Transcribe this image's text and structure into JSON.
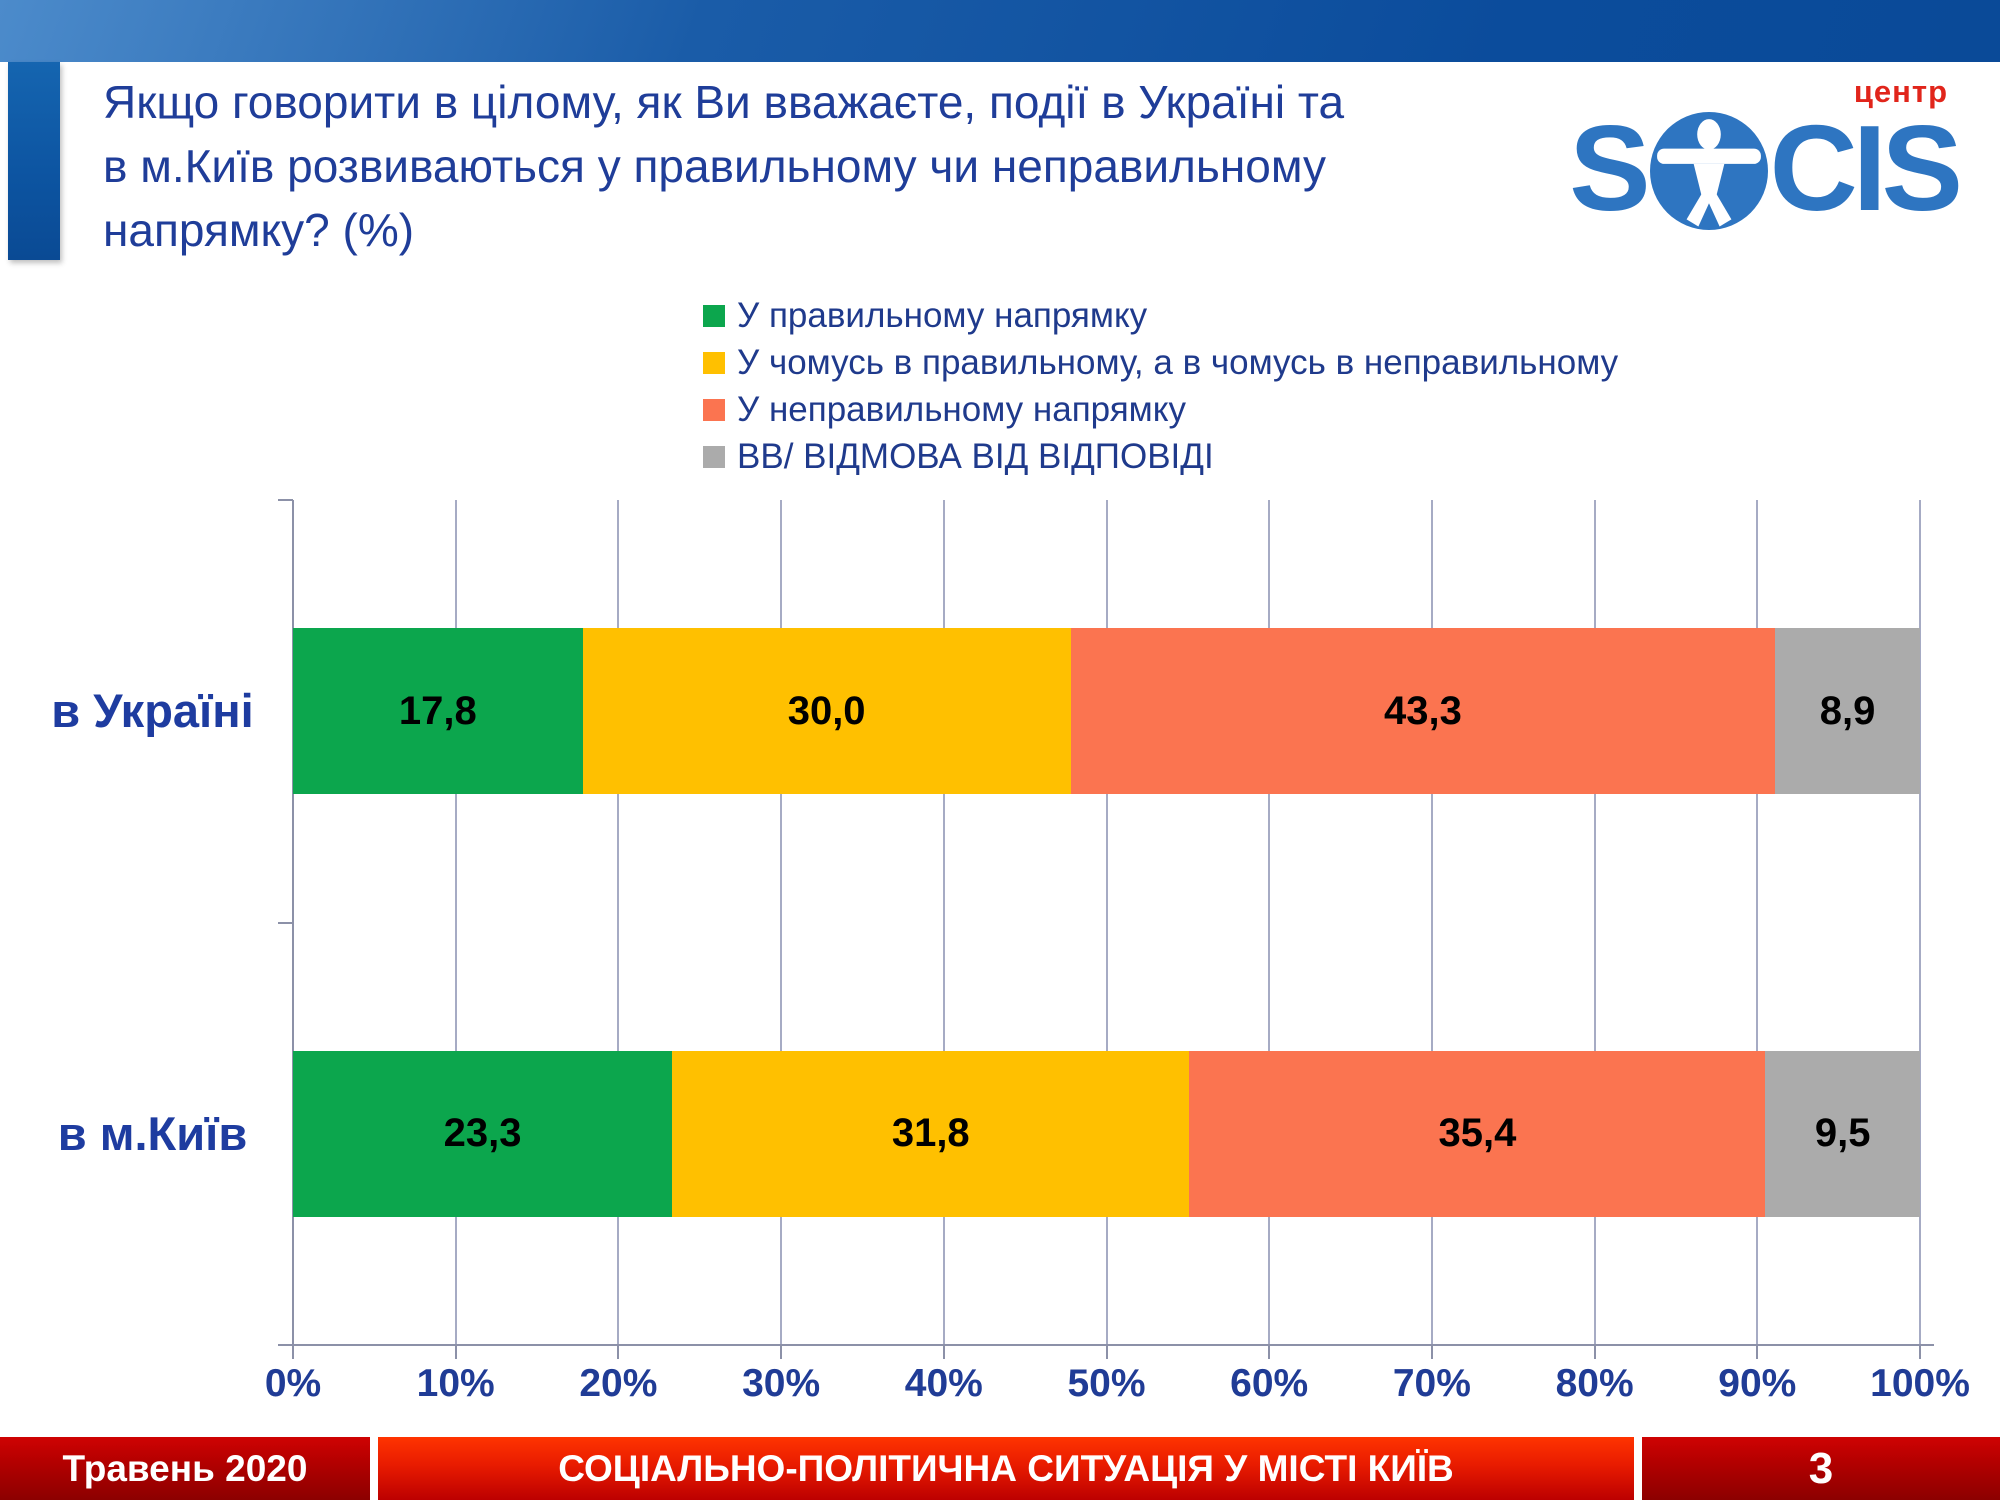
{
  "slide": {
    "title_lines": [
      "Якщо говорити в цілому, як Ви вважаєте, події в Україні та",
      "в м.Київ розвиваються у правильному чи неправильному",
      "напрямку? (%)"
    ]
  },
  "logo": {
    "prefix": "S",
    "suffix": "CIS",
    "tagline": "центр",
    "brand_color": "#2e75c1",
    "tagline_color": "#e1251b"
  },
  "footer": {
    "date": "Травень 2020",
    "title": "СОЦІАЛЬНО-ПОЛІТИЧНА СИТУАЦІЯ У МІСТІ КИЇВ",
    "page_number": "3"
  },
  "chart_data": {
    "type": "bar",
    "subtype": "horizontal-stacked",
    "categories": [
      "в Україні",
      "в м.Київ"
    ],
    "series": [
      {
        "name": "У правильному напрямку",
        "color": "#0ca64d",
        "values": [
          17.8,
          23.3
        ],
        "labels": [
          "17,8",
          "23,3"
        ]
      },
      {
        "name": "У чомусь в правильному, а в чомусь в неправильному",
        "color": "#ffc000",
        "values": [
          30.0,
          31.8
        ],
        "labels": [
          "30,0",
          "31,8"
        ]
      },
      {
        "name": "У неправильному напрямку",
        "color": "#fb7450",
        "values": [
          43.3,
          35.4
        ],
        "labels": [
          "43,3",
          "35,4"
        ]
      },
      {
        "name": "ВВ/ ВІДМОВА ВІД ВІДПОВІДІ",
        "color": "#ababab",
        "values": [
          8.9,
          9.5
        ],
        "labels": [
          "8,9",
          "9,5"
        ]
      }
    ],
    "x_ticks": [
      "0%",
      "10%",
      "20%",
      "30%",
      "40%",
      "50%",
      "60%",
      "70%",
      "80%",
      "90%",
      "100%"
    ],
    "xlim": [
      0,
      100
    ],
    "grid": true,
    "legend_position": "top-center",
    "value_label_color": "#000000",
    "axis_label_color": "#203c96"
  }
}
